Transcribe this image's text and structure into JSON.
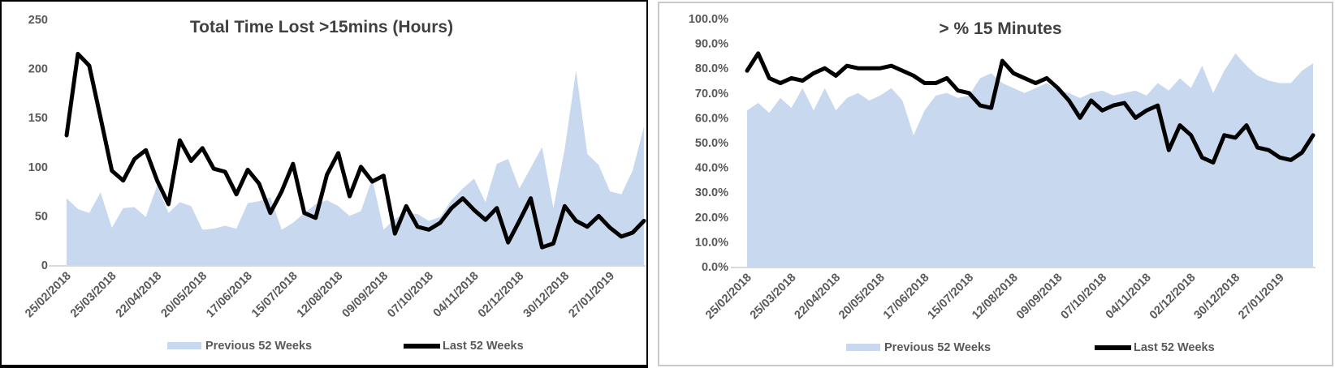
{
  "colors": {
    "area_fill": "#c7d8ef",
    "line": "#000000",
    "title_text": "#404040",
    "axis_text": "#595959",
    "axis_line": "#d9d9d9",
    "left_panel_border": "#000000",
    "right_panel_border": "#c9c9c9",
    "background": "#ffffff"
  },
  "chart_data": [
    {
      "type": "area+line",
      "title": "Total Time Lost >15mins (Hours)",
      "xlabel": "",
      "ylabel": "",
      "ylim": [
        0,
        250
      ],
      "ytick_labels": [
        "0",
        "50",
        "100",
        "150",
        "200",
        "250"
      ],
      "grid": false,
      "legend_position": "bottom",
      "label_every": 4,
      "x_tick_labels": [
        "25/02/2018",
        "25/03/2018",
        "22/04/2018",
        "20/05/2018",
        "17/06/2018",
        "15/07/2018",
        "12/08/2018",
        "09/09/2018",
        "07/10/2018",
        "04/11/2018",
        "02/12/2018",
        "30/12/2018",
        "27/01/2019"
      ],
      "series": [
        {
          "name": "Previous 52 Weeks",
          "type": "area",
          "values": [
            68,
            57,
            53,
            74,
            38,
            58,
            59,
            49,
            81,
            53,
            64,
            60,
            36,
            37,
            40,
            37,
            63,
            65,
            69,
            36,
            43,
            53,
            62,
            66,
            60,
            50,
            55,
            88,
            36,
            47,
            53,
            52,
            45,
            49,
            66,
            78,
            88,
            64,
            103,
            108,
            78,
            99,
            120,
            58,
            118,
            198,
            113,
            102,
            75,
            72,
            96,
            141
          ]
        },
        {
          "name": "Last 52 Weeks",
          "type": "line",
          "values": [
            132,
            215,
            203,
            150,
            96,
            86,
            108,
            117,
            86,
            62,
            127,
            106,
            119,
            98,
            95,
            72,
            97,
            83,
            53,
            75,
            103,
            53,
            48,
            92,
            114,
            70,
            100,
            85,
            91,
            32,
            60,
            39,
            36,
            43,
            58,
            68,
            56,
            46,
            58,
            23,
            45,
            68,
            18,
            22,
            60,
            45,
            39,
            50,
            38,
            29,
            33,
            45
          ]
        }
      ]
    },
    {
      "type": "area+line",
      "title": "> % 15 Minutes",
      "xlabel": "",
      "ylabel": "",
      "ylim": [
        0,
        100
      ],
      "ytick_labels": [
        "0.0%",
        "10.0%",
        "20.0%",
        "30.0%",
        "40.0%",
        "50.0%",
        "60.0%",
        "70.0%",
        "80.0%",
        "90.0%",
        "100.0%"
      ],
      "grid": false,
      "legend_position": "bottom",
      "label_every": 4,
      "x_tick_labels": [
        "25/02/2018",
        "25/03/2018",
        "22/04/2018",
        "20/05/2018",
        "17/06/2018",
        "15/07/2018",
        "12/08/2018",
        "09/09/2018",
        "07/10/2018",
        "04/11/2018",
        "02/12/2018",
        "30/12/2018",
        "27/01/2019"
      ],
      "series": [
        {
          "name": "Previous 52 Weeks",
          "type": "area",
          "values": [
            63,
            66,
            62,
            68,
            64,
            72,
            63,
            72,
            63,
            68,
            70,
            67,
            69,
            72,
            67,
            53,
            63,
            69,
            70,
            68,
            69,
            76,
            78,
            74,
            72,
            70,
            72,
            74,
            71,
            70,
            68,
            70,
            71,
            69,
            70,
            71,
            69,
            74,
            71,
            76,
            72,
            81,
            70,
            79,
            86,
            81,
            77,
            75,
            74,
            74,
            79,
            82
          ]
        },
        {
          "name": "Last 52 Weeks",
          "type": "line",
          "values": [
            79,
            86,
            76,
            74,
            76,
            75,
            78,
            80,
            77,
            81,
            80,
            80,
            80,
            81,
            79,
            77,
            74,
            74,
            76,
            71,
            70,
            65,
            64,
            83,
            78,
            76,
            74,
            76,
            72,
            67,
            60,
            67,
            63,
            65,
            66,
            60,
            63,
            65,
            47,
            57,
            53,
            44,
            42,
            53,
            52,
            57,
            48,
            47,
            44,
            43,
            46,
            53
          ]
        }
      ]
    }
  ]
}
